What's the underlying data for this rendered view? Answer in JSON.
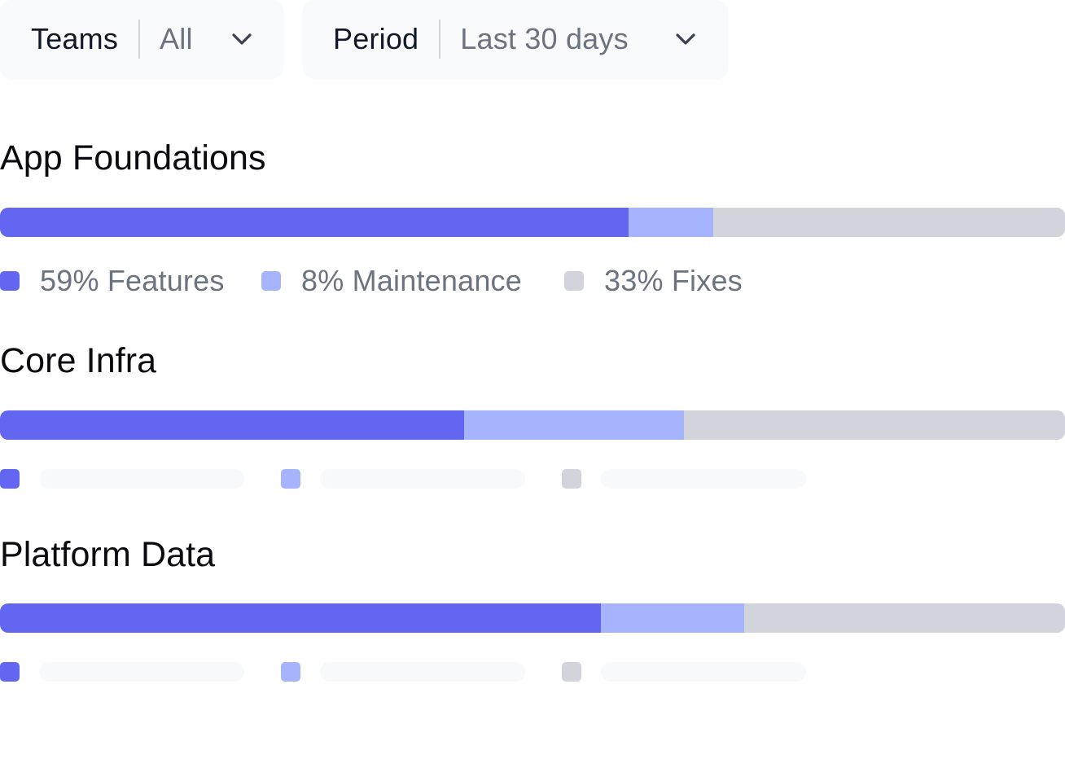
{
  "filters": {
    "teams": {
      "label": "Teams",
      "value": "All"
    },
    "period": {
      "label": "Period",
      "value": "Last 30 days"
    }
  },
  "colors": {
    "features": "#6366f1",
    "maintenance": "#a5b4fc",
    "fixes": "#d1d5db",
    "track": "#d1d5db"
  },
  "icons": {
    "dropdown": "chevron-down-icon"
  },
  "teams": [
    {
      "name": "App Foundations",
      "breakdown": {
        "features": 59,
        "maintenance": 8,
        "fixes": 33
      },
      "legend": {
        "features": "59% Features",
        "maintenance": "8% Maintenance",
        "fixes": "33% Fixes"
      },
      "loading": false
    },
    {
      "name": "Core Infra",
      "breakdown": {
        "features": 43.6,
        "maintenance": 20.6,
        "fixes": 35.8
      },
      "loading": true
    },
    {
      "name": "Platform Data",
      "breakdown": {
        "features": 56.4,
        "maintenance": 13.5,
        "fixes": 30.1
      },
      "loading": true
    }
  ]
}
